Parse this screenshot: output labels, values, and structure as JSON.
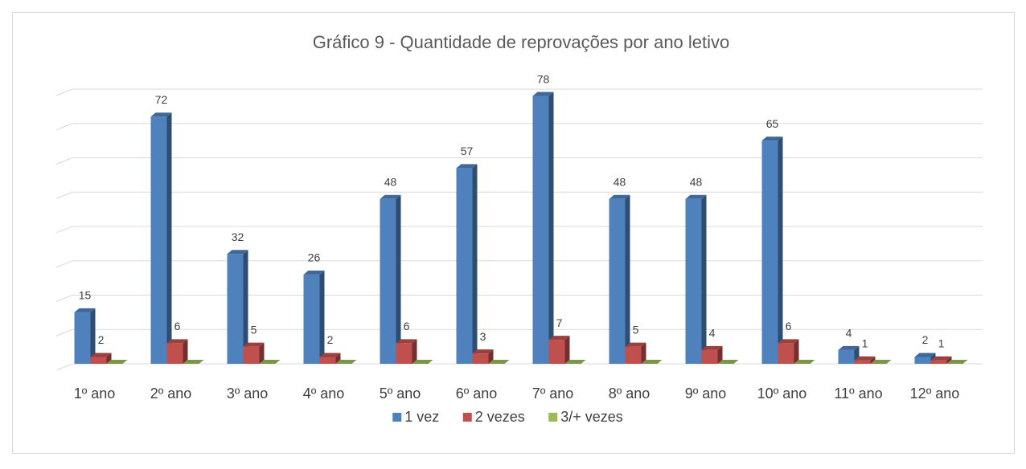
{
  "chart_data": {
    "type": "bar3d",
    "title": "Gráfico 9 - Quantidade de reprovações por ano letivo",
    "categories": [
      "1º ano",
      "2º ano",
      "3º ano",
      "4º ano",
      "5º ano",
      "6º ano",
      "7º ano",
      "8º ano",
      "9º ano",
      "10º ano",
      "11º ano",
      "12º ano"
    ],
    "series": [
      {
        "name": "1 vez",
        "color": "#4f81bd",
        "values": [
          15,
          72,
          32,
          26,
          48,
          57,
          78,
          48,
          48,
          65,
          4,
          2
        ]
      },
      {
        "name": "2 vezes",
        "color": "#c0504d",
        "values": [
          2,
          6,
          5,
          2,
          6,
          3,
          7,
          5,
          4,
          6,
          1,
          1
        ]
      },
      {
        "name": "3/+ vezes",
        "color": "#9bbb59",
        "values": [
          0,
          0,
          0,
          0,
          0,
          0,
          0,
          0,
          0,
          0,
          0,
          0
        ]
      }
    ],
    "ylim": [
      0,
      80
    ],
    "yticks": [
      0,
      10,
      20,
      30,
      40,
      50,
      60,
      70,
      80
    ],
    "grid": true,
    "legend": "bottom"
  }
}
